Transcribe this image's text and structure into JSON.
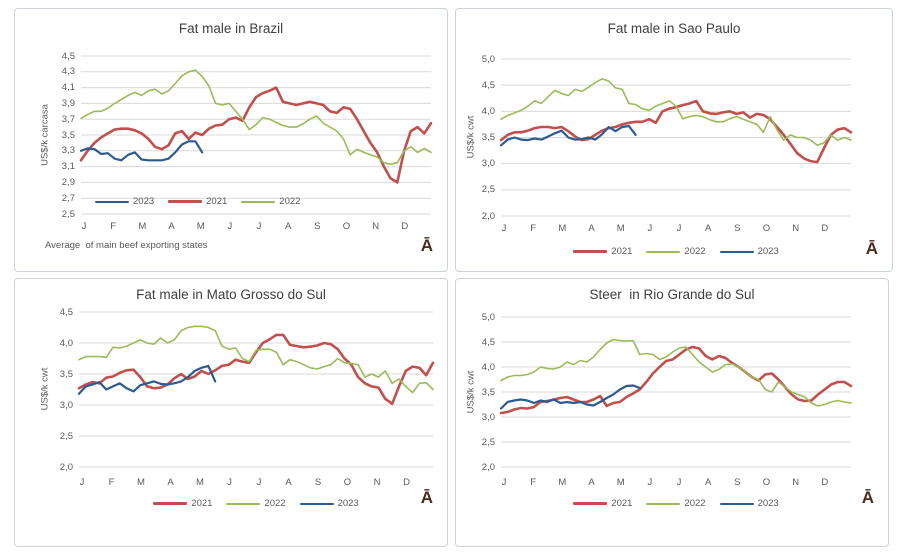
{
  "page": {
    "background": "#ffffff"
  },
  "colors": {
    "grid": "#d9d9d9",
    "axis_text": "#595959",
    "title_text": "#404040",
    "logo": "#4a2c1f",
    "panel_border": "#ccd3d9",
    "red_2021": "#c0504d",
    "green_2022": "#9bbb59",
    "blue_2023": "#2e5b8f"
  },
  "chart_data": [
    {
      "type": "line",
      "title": "Fat male in Brazil",
      "ylabel": "US$/k carcasa",
      "ylim": [
        2.5,
        4.5
      ],
      "ytick_labels": [
        "4,5",
        "4,3",
        "4,1",
        "3,9",
        "3,7",
        "3,5",
        "3,3",
        "3,1",
        "2,9",
        "2,7",
        "2,5"
      ],
      "ytick_values": [
        4.5,
        4.3,
        4.1,
        3.9,
        3.7,
        3.5,
        3.3,
        3.1,
        2.9,
        2.7,
        2.5
      ],
      "months": [
        "J",
        "F",
        "M",
        "A",
        "M",
        "J",
        "J",
        "A",
        "S",
        "O",
        "N",
        "D"
      ],
      "legend_position": "inside-bottom-left",
      "legend_order": [
        "2023",
        "2021",
        "2022"
      ],
      "note": "Average  of main beef exporting states",
      "logo": "Ā",
      "series": [
        {
          "name": "2021",
          "color": "#c0504d",
          "width": 2.6,
          "values": [
            3.18,
            3.3,
            3.4,
            3.47,
            3.52,
            3.57,
            3.58,
            3.58,
            3.56,
            3.52,
            3.45,
            3.35,
            3.32,
            3.37,
            3.52,
            3.55,
            3.45,
            3.53,
            3.5,
            3.58,
            3.62,
            3.63,
            3.7,
            3.72,
            3.68,
            3.85,
            3.98,
            4.03,
            4.06,
            4.1,
            3.92,
            3.9,
            3.88,
            3.9,
            3.92,
            3.9,
            3.88,
            3.8,
            3.78,
            3.85,
            3.83,
            3.7,
            3.55,
            3.4,
            3.28,
            3.1,
            2.95,
            2.9,
            3.3,
            3.55,
            3.6,
            3.52,
            3.65
          ]
        },
        {
          "name": "2022",
          "color": "#9bbb59",
          "width": 1.6,
          "values": [
            3.71,
            3.76,
            3.8,
            3.8,
            3.84,
            3.9,
            3.95,
            4.0,
            4.04,
            4.0,
            4.06,
            4.08,
            4.02,
            4.06,
            4.15,
            4.25,
            4.3,
            4.32,
            4.24,
            4.12,
            3.9,
            3.88,
            3.9,
            3.8,
            3.7,
            3.57,
            3.63,
            3.72,
            3.7,
            3.66,
            3.62,
            3.6,
            3.6,
            3.64,
            3.7,
            3.74,
            3.65,
            3.6,
            3.55,
            3.45,
            3.25,
            3.32,
            3.28,
            3.25,
            3.22,
            3.15,
            3.13,
            3.15,
            3.3,
            3.35,
            3.28,
            3.33,
            3.28
          ]
        },
        {
          "name": "2023",
          "color": "#2e5b8f",
          "width": 2.2,
          "values": [
            3.3,
            3.33,
            3.32,
            3.26,
            3.27,
            3.2,
            3.18,
            3.25,
            3.28,
            3.19,
            3.18,
            3.18,
            3.18,
            3.2,
            3.28,
            3.38,
            3.42,
            3.42,
            3.28
          ]
        }
      ]
    },
    {
      "type": "line",
      "title": "Fat male in Sao Paulo",
      "ylabel": "US$/k cwt",
      "ylim": [
        2.0,
        5.0
      ],
      "ytick_labels": [
        "5,0",
        "4,5",
        "4,0",
        "3,5",
        "3,0",
        "2,5",
        "2,0"
      ],
      "ytick_values": [
        5.0,
        4.5,
        4.0,
        3.5,
        3.0,
        2.5,
        2.0
      ],
      "months": [
        "J",
        "F",
        "M",
        "A",
        "M",
        "J",
        "J",
        "A",
        "S",
        "O",
        "N",
        "D"
      ],
      "legend_position": "below",
      "legend_order": [
        "2021",
        "2022",
        "2023"
      ],
      "logo": "Ā",
      "series": [
        {
          "name": "2021",
          "color": "#c0504d",
          "width": 2.6,
          "values": [
            3.45,
            3.55,
            3.6,
            3.6,
            3.63,
            3.68,
            3.7,
            3.7,
            3.68,
            3.7,
            3.62,
            3.52,
            3.45,
            3.47,
            3.55,
            3.63,
            3.68,
            3.7,
            3.75,
            3.78,
            3.8,
            3.8,
            3.85,
            3.78,
            4.0,
            4.05,
            4.08,
            4.12,
            4.15,
            4.2,
            4.0,
            3.96,
            3.95,
            3.98,
            4.0,
            3.95,
            3.98,
            3.88,
            3.95,
            3.93,
            3.85,
            3.7,
            3.55,
            3.38,
            3.2,
            3.1,
            3.05,
            3.03,
            3.3,
            3.55,
            3.65,
            3.68,
            3.6
          ]
        },
        {
          "name": "2022",
          "color": "#9bbb59",
          "width": 1.6,
          "values": [
            3.85,
            3.92,
            3.97,
            4.02,
            4.1,
            4.2,
            4.15,
            4.28,
            4.4,
            4.34,
            4.3,
            4.42,
            4.38,
            4.46,
            4.55,
            4.62,
            4.58,
            4.45,
            4.42,
            4.15,
            4.13,
            4.05,
            4.02,
            4.1,
            4.15,
            4.2,
            4.1,
            3.86,
            3.9,
            3.92,
            3.9,
            3.84,
            3.8,
            3.8,
            3.86,
            3.9,
            3.85,
            3.8,
            3.75,
            3.6,
            3.9,
            3.65,
            3.45,
            3.55,
            3.5,
            3.5,
            3.45,
            3.35,
            3.4,
            3.55,
            3.45,
            3.5,
            3.45
          ]
        },
        {
          "name": "2023",
          "color": "#2e5b8f",
          "width": 2.2,
          "values": [
            3.35,
            3.46,
            3.5,
            3.46,
            3.45,
            3.48,
            3.46,
            3.52,
            3.58,
            3.63,
            3.5,
            3.46,
            3.47,
            3.5,
            3.46,
            3.56,
            3.7,
            3.62,
            3.7,
            3.72,
            3.55
          ]
        }
      ]
    },
    {
      "type": "line",
      "title": "Fat male in Mato Grosso do Sul",
      "ylabel": "US$/k cwt",
      "ylim": [
        2.0,
        4.5
      ],
      "ytick_labels": [
        "4,5",
        "4,0",
        "3,5",
        "3,0",
        "2,5",
        "2,0"
      ],
      "ytick_values": [
        4.5,
        4.0,
        3.5,
        3.0,
        2.5,
        2.0
      ],
      "months": [
        "J",
        "F",
        "M",
        "A",
        "M",
        "J",
        "J",
        "A",
        "S",
        "O",
        "N",
        "D"
      ],
      "legend_position": "below",
      "legend_order": [
        "2021",
        "2022",
        "2023"
      ],
      "logo": "Ā",
      "series": [
        {
          "name": "2021",
          "color": "#c0504d",
          "width": 2.6,
          "values": [
            3.27,
            3.33,
            3.37,
            3.35,
            3.44,
            3.46,
            3.52,
            3.56,
            3.57,
            3.45,
            3.3,
            3.27,
            3.28,
            3.33,
            3.43,
            3.5,
            3.42,
            3.46,
            3.55,
            3.5,
            3.56,
            3.63,
            3.65,
            3.73,
            3.7,
            3.68,
            3.85,
            4.0,
            4.06,
            4.13,
            4.13,
            3.97,
            3.95,
            3.93,
            3.94,
            3.96,
            4.0,
            3.98,
            3.9,
            3.75,
            3.65,
            3.45,
            3.35,
            3.3,
            3.28,
            3.1,
            3.02,
            3.3,
            3.55,
            3.62,
            3.6,
            3.48,
            3.68
          ]
        },
        {
          "name": "2022",
          "color": "#9bbb59",
          "width": 1.6,
          "values": [
            3.73,
            3.78,
            3.78,
            3.78,
            3.77,
            3.93,
            3.92,
            3.95,
            4.0,
            4.05,
            4.0,
            3.98,
            4.08,
            4.0,
            4.05,
            4.2,
            4.25,
            4.27,
            4.27,
            4.25,
            4.2,
            3.95,
            3.9,
            3.92,
            3.75,
            3.7,
            3.88,
            3.9,
            3.9,
            3.85,
            3.65,
            3.73,
            3.7,
            3.65,
            3.6,
            3.58,
            3.62,
            3.65,
            3.75,
            3.68,
            3.67,
            3.65,
            3.45,
            3.5,
            3.45,
            3.55,
            3.35,
            3.42,
            3.3,
            3.2,
            3.35,
            3.36,
            3.25
          ]
        },
        {
          "name": "2023",
          "color": "#2e5b8f",
          "width": 2.2,
          "values": [
            3.18,
            3.3,
            3.33,
            3.37,
            3.25,
            3.3,
            3.35,
            3.27,
            3.22,
            3.32,
            3.35,
            3.38,
            3.34,
            3.33,
            3.35,
            3.38,
            3.45,
            3.55,
            3.6,
            3.63,
            3.38
          ]
        }
      ]
    },
    {
      "type": "line",
      "title": "Steer  in Rio Grande do Sul",
      "ylabel": "US$/k cwt",
      "ylim": [
        2.0,
        5.0
      ],
      "ytick_labels": [
        "5,0",
        "4,5",
        "4,0",
        "3,5",
        "3,0",
        "2,5",
        "2,0"
      ],
      "ytick_values": [
        5.0,
        4.5,
        4.0,
        3.5,
        3.0,
        2.5,
        2.0
      ],
      "months": [
        "J",
        "F",
        "M",
        "A",
        "M",
        "J",
        "J",
        "A",
        "S",
        "O",
        "N",
        "D"
      ],
      "legend_position": "below",
      "legend_order": [
        "2021",
        "2022",
        "2023"
      ],
      "logo": "Ā",
      "series": [
        {
          "name": "2021",
          "color": "#c0504d",
          "width": 2.6,
          "values": [
            3.08,
            3.1,
            3.15,
            3.18,
            3.17,
            3.2,
            3.3,
            3.32,
            3.35,
            3.38,
            3.4,
            3.35,
            3.3,
            3.3,
            3.35,
            3.42,
            3.22,
            3.28,
            3.3,
            3.4,
            3.47,
            3.55,
            3.7,
            3.87,
            4.0,
            4.12,
            4.15,
            4.25,
            4.35,
            4.4,
            4.37,
            4.22,
            4.15,
            4.22,
            4.18,
            4.08,
            4.0,
            3.9,
            3.8,
            3.73,
            3.85,
            3.87,
            3.75,
            3.6,
            3.45,
            3.35,
            3.32,
            3.33,
            3.45,
            3.55,
            3.65,
            3.7,
            3.7,
            3.62
          ]
        },
        {
          "name": "2022",
          "color": "#9bbb59",
          "width": 1.6,
          "values": [
            3.73,
            3.8,
            3.83,
            3.83,
            3.85,
            3.9,
            4.0,
            3.97,
            3.96,
            4.0,
            4.1,
            4.05,
            4.13,
            4.1,
            4.2,
            4.35,
            4.48,
            4.55,
            4.53,
            4.52,
            4.53,
            4.25,
            4.27,
            4.25,
            4.15,
            4.2,
            4.3,
            4.38,
            4.4,
            4.25,
            4.1,
            4.0,
            3.9,
            3.95,
            4.05,
            4.06,
            4.0,
            3.9,
            3.8,
            3.75,
            3.55,
            3.5,
            3.7,
            3.6,
            3.5,
            3.45,
            3.4,
            3.28,
            3.22,
            3.25,
            3.3,
            3.33,
            3.3,
            3.28
          ]
        },
        {
          "name": "2023",
          "color": "#2e5b8f",
          "width": 2.2,
          "values": [
            3.17,
            3.3,
            3.33,
            3.35,
            3.33,
            3.28,
            3.33,
            3.3,
            3.35,
            3.28,
            3.3,
            3.28,
            3.3,
            3.25,
            3.23,
            3.3,
            3.38,
            3.45,
            3.55,
            3.62,
            3.63,
            3.58
          ]
        }
      ]
    }
  ]
}
